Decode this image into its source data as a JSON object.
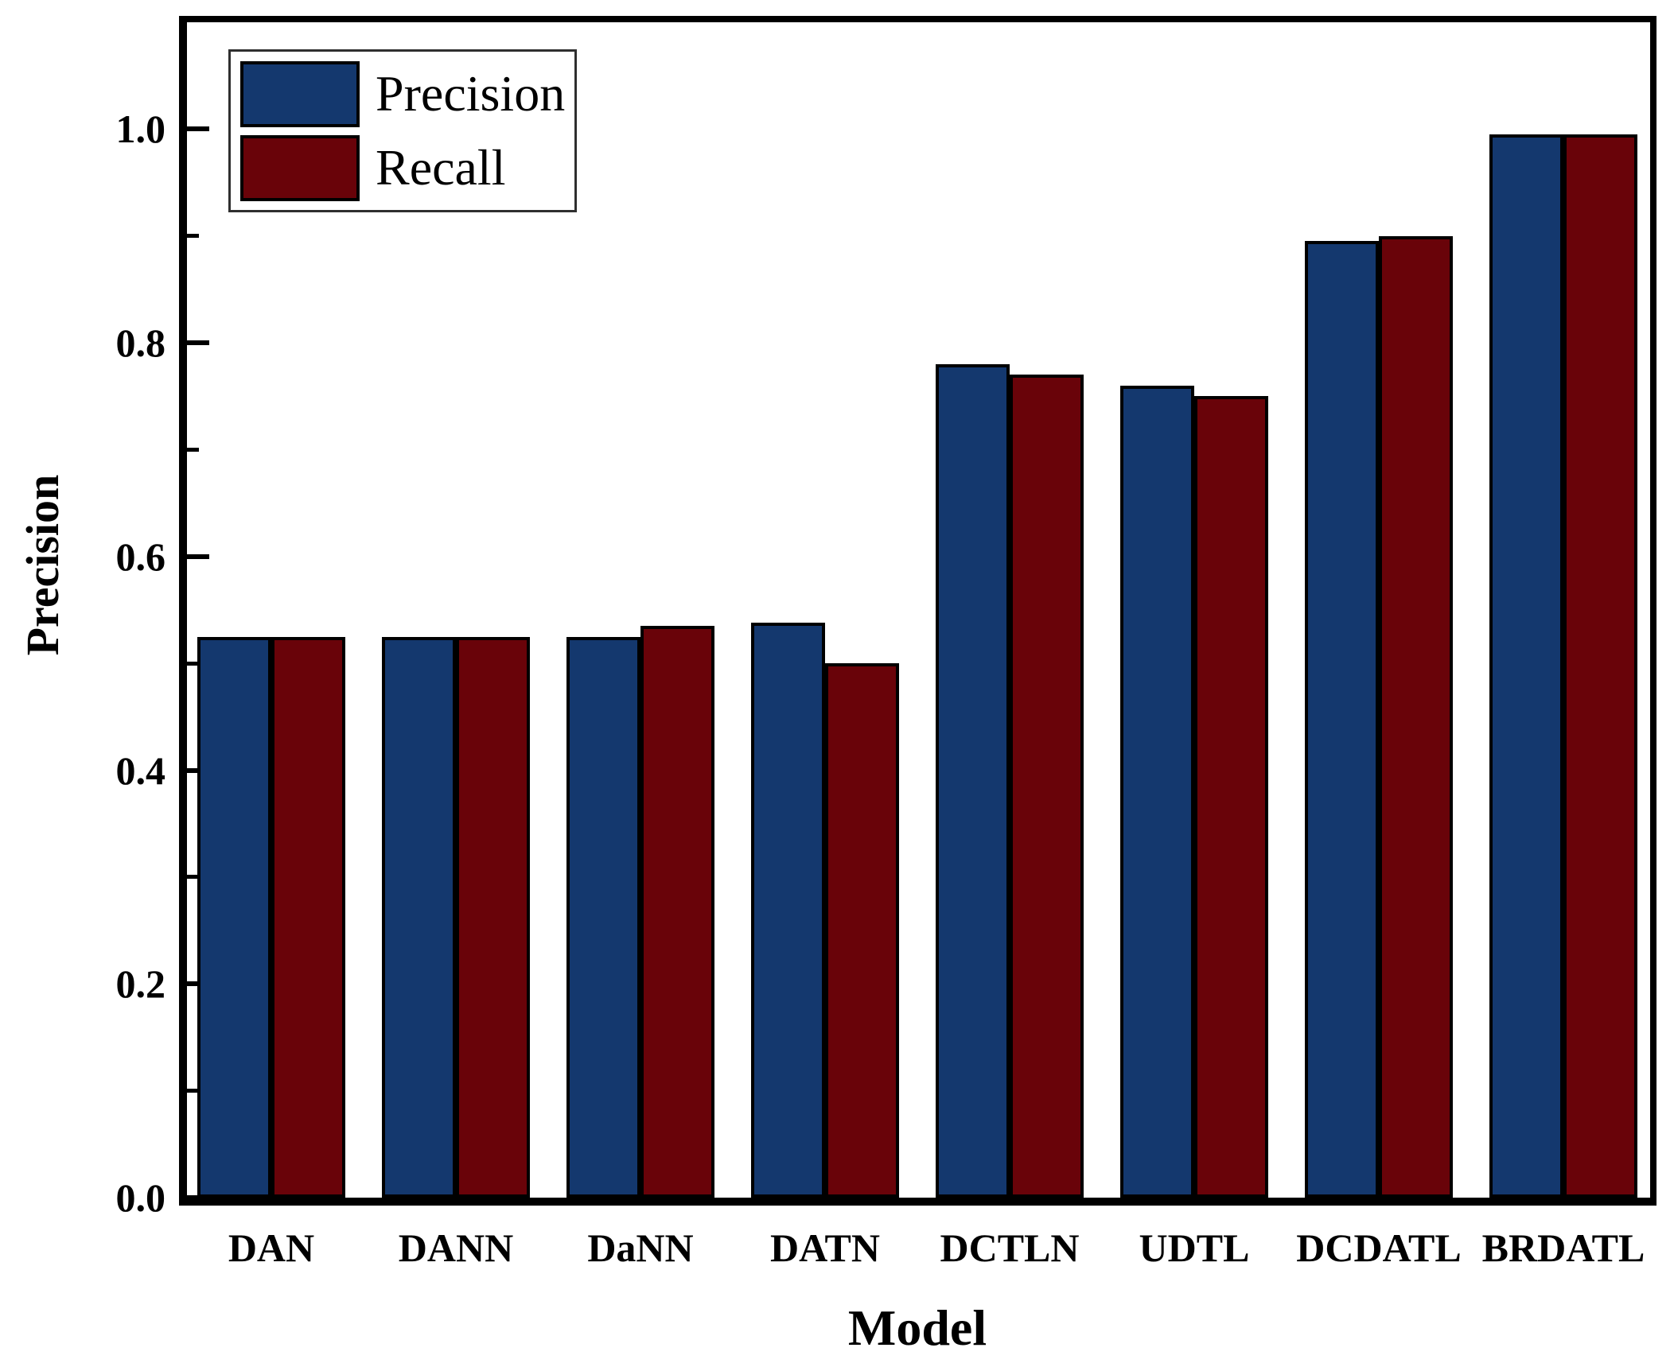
{
  "figure": {
    "background": "#ffffff",
    "frame_color": "#000000"
  },
  "axes": {
    "y_label": "Precision",
    "x_label": "Model",
    "y_tick_labels": [
      "0.0",
      "0.2",
      "0.4",
      "0.6",
      "0.8",
      "1.0"
    ],
    "y_ticks_major": [
      0.0,
      0.2,
      0.4,
      0.6,
      0.8,
      1.0
    ],
    "y_ticks_minor": [
      0.1,
      0.3,
      0.5,
      0.7,
      0.9,
      1.1
    ],
    "y_max": 1.1
  },
  "legend": {
    "items": [
      {
        "label": "Precision",
        "color": "#14386E"
      },
      {
        "label": "Recall",
        "color": "#690309"
      }
    ]
  },
  "chart_data": {
    "type": "bar",
    "title": "",
    "xlabel": "Model",
    "ylabel": "Precision",
    "ylim": [
      0,
      1.1
    ],
    "grid": false,
    "legend_position": "upper left",
    "categories": [
      "DAN",
      "DANN",
      "DaNN",
      "DATN",
      "DCTLN",
      "UDTL",
      "DCDATL",
      "BRDATL"
    ],
    "series": [
      {
        "name": "Precision",
        "color": "#14386E",
        "values": [
          0.525,
          0.525,
          0.525,
          0.538,
          0.78,
          0.76,
          0.895,
          0.995
        ]
      },
      {
        "name": "Recall",
        "color": "#690309",
        "values": [
          0.525,
          0.525,
          0.535,
          0.5,
          0.77,
          0.75,
          0.9,
          0.995
        ]
      }
    ]
  }
}
